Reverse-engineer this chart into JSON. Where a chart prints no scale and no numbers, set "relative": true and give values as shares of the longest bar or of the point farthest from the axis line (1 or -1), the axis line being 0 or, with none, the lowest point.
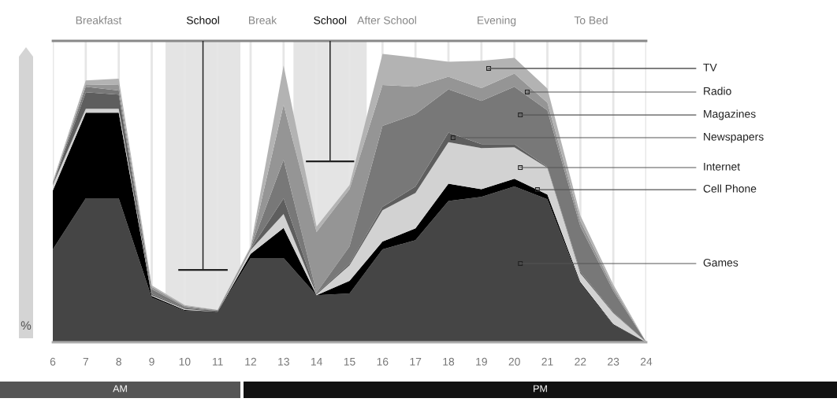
{
  "chart_data": {
    "type": "area",
    "stacked": true,
    "relative": true,
    "grid": "x",
    "ylabel": "%",
    "x": [
      6,
      7,
      8,
      9,
      10,
      11,
      12,
      13,
      14,
      15,
      16,
      17,
      18,
      19,
      20,
      21,
      22,
      23,
      24
    ],
    "xlim": [
      6,
      24
    ],
    "xticks": [
      6,
      7,
      8,
      9,
      10,
      11,
      12,
      13,
      14,
      15,
      16,
      17,
      18,
      19,
      20,
      21,
      22,
      23,
      24
    ],
    "series": [
      {
        "name": "Games",
        "color": "#454545",
        "values": [
          0.322,
          0.499,
          0.499,
          0.155,
          0.109,
          0.106,
          0.292,
          0.292,
          0.163,
          0.169,
          0.322,
          0.354,
          0.49,
          0.504,
          0.54,
          0.496,
          0.204,
          0.06,
          0
        ]
      },
      {
        "name": "Cell Phone",
        "color": "#000000",
        "values": [
          0.204,
          0.297,
          0.297,
          0.005,
          0.003,
          0,
          0.014,
          0.104,
          0,
          0.044,
          0.027,
          0.041,
          0.06,
          0.027,
          0.027,
          0.016,
          0.005,
          0.003,
          0
        ]
      },
      {
        "name": "Internet",
        "color": "#d2d2d2",
        "values": [
          0.019,
          0.014,
          0.014,
          0.003,
          0.003,
          0,
          0.014,
          0.049,
          0.003,
          0.054,
          0.109,
          0.123,
          0.144,
          0.142,
          0.109,
          0.093,
          0.03,
          0.038,
          0
        ]
      },
      {
        "name": "Newspapers",
        "color": "#5e5e5e",
        "values": [
          0.003,
          0.057,
          0.049,
          0.005,
          0.003,
          0.003,
          0.003,
          0.054,
          0.003,
          0.005,
          0.011,
          0.022,
          0.033,
          0.014,
          0.011,
          0.003,
          0.005,
          0.003,
          0
        ]
      },
      {
        "name": "Magazines",
        "color": "#787878",
        "values": [
          0.003,
          0.019,
          0.014,
          0.016,
          0.005,
          0,
          0.003,
          0.134,
          0.003,
          0.06,
          0.281,
          0.251,
          0.15,
          0.15,
          0.199,
          0.196,
          0.158,
          0.074,
          0
        ]
      },
      {
        "name": "Radio",
        "color": "#959595",
        "values": [
          0.003,
          0.008,
          0.019,
          0.008,
          0.003,
          0.003,
          0.003,
          0.191,
          0.21,
          0.199,
          0.142,
          0.095,
          0.044,
          0.044,
          0.046,
          0.027,
          0.019,
          0.011,
          0
        ]
      },
      {
        "name": "TV",
        "color": "#b3b3b3",
        "values": [
          0.003,
          0.014,
          0.022,
          0.005,
          0.003,
          0,
          0.003,
          0.136,
          0.019,
          0.014,
          0.108,
          0.101,
          0.052,
          0.095,
          0.054,
          0.049,
          0.019,
          0.011,
          0
        ]
      }
    ],
    "bands": [
      {
        "axis": "x",
        "from": 9.42,
        "to": 11.69,
        "label": "School",
        "color": "#e4e4e4"
      },
      {
        "axis": "x",
        "from": 13.3,
        "to": 15.52,
        "label": "School",
        "color": "#e4e4e4"
      }
    ],
    "annotations": [
      "Breakfast",
      "Break",
      "After School",
      "Evening",
      "To Bed",
      "AM",
      "PM"
    ]
  }
}
